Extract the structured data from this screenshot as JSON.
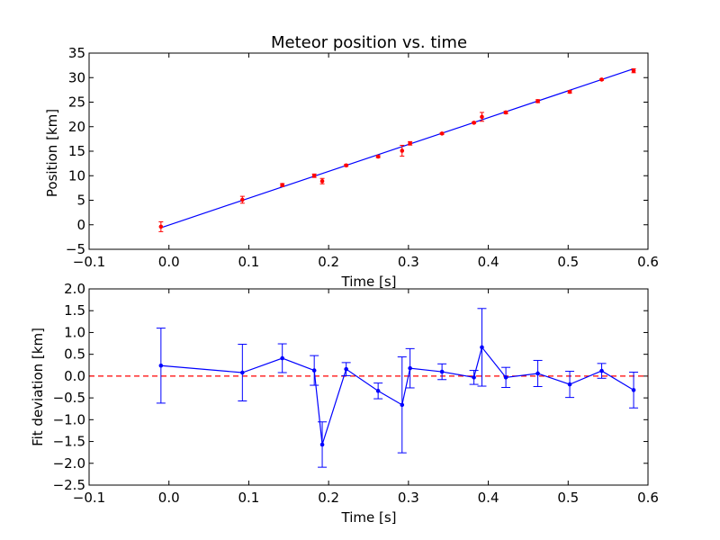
{
  "chart_data": [
    {
      "type": "scatter",
      "title": "Meteor position vs. time",
      "xlabel": "Time [s]",
      "ylabel": "Position [km]",
      "xlim": [
        -0.1,
        0.6
      ],
      "ylim": [
        -5,
        35
      ],
      "xticks": [
        "−0.1",
        "0.0",
        "0.1",
        "0.2",
        "0.3",
        "0.4",
        "0.5",
        "0.6"
      ],
      "yticks": [
        "−5",
        "0",
        "5",
        "10",
        "15",
        "20",
        "25",
        "30",
        "35"
      ],
      "grid": false,
      "series": [
        {
          "kind": "errorbar-points",
          "color": "#ff0000",
          "points": [
            {
              "x": -0.01,
              "y": -0.4,
              "err": 1.0
            },
            {
              "x": 0.092,
              "y": 5.1,
              "err": 0.7
            },
            {
              "x": 0.142,
              "y": 8.1,
              "err": 0.3
            },
            {
              "x": 0.182,
              "y": 10.0,
              "err": 0.35
            },
            {
              "x": 0.192,
              "y": 8.9,
              "err": 0.55
            },
            {
              "x": 0.222,
              "y": 12.1,
              "err": 0.2
            },
            {
              "x": 0.262,
              "y": 13.9,
              "err": 0.2
            },
            {
              "x": 0.292,
              "y": 15.1,
              "err": 1.1
            },
            {
              "x": 0.302,
              "y": 16.6,
              "err": 0.35
            },
            {
              "x": 0.342,
              "y": 18.6,
              "err": 0.15
            },
            {
              "x": 0.382,
              "y": 20.8,
              "err": 0.15
            },
            {
              "x": 0.392,
              "y": 22.0,
              "err": 0.9
            },
            {
              "x": 0.422,
              "y": 22.9,
              "err": 0.25
            },
            {
              "x": 0.462,
              "y": 25.2,
              "err": 0.3
            },
            {
              "x": 0.502,
              "y": 27.1,
              "err": 0.25
            },
            {
              "x": 0.542,
              "y": 29.6,
              "err": 0.15
            },
            {
              "x": 0.582,
              "y": 31.4,
              "err": 0.4
            }
          ]
        },
        {
          "kind": "fit-line",
          "color": "#0000ff",
          "x": [
            -0.01,
            0.582
          ],
          "y": [
            -0.6,
            31.8
          ]
        }
      ]
    },
    {
      "type": "line",
      "title": "",
      "xlabel": "Time [s]",
      "ylabel": "Fit deviation [km]",
      "xlim": [
        -0.1,
        0.6
      ],
      "ylim": [
        -2.5,
        2.0
      ],
      "xticks": [
        "−0.1",
        "0.0",
        "0.1",
        "0.2",
        "0.3",
        "0.4",
        "0.5",
        "0.6"
      ],
      "yticks": [
        "−2.5",
        "−2.0",
        "−1.5",
        "−1.0",
        "−0.5",
        "0.0",
        "0.5",
        "1.0",
        "1.5",
        "2.0"
      ],
      "grid": false,
      "series": [
        {
          "kind": "errorbar-line",
          "color": "#0000ff",
          "points": [
            {
              "x": -0.01,
              "y": 0.24,
              "err": 0.86
            },
            {
              "x": 0.092,
              "y": 0.08,
              "err": 0.65
            },
            {
              "x": 0.142,
              "y": 0.41,
              "err": 0.33
            },
            {
              "x": 0.182,
              "y": 0.13,
              "err": 0.34
            },
            {
              "x": 0.192,
              "y": -1.57,
              "err": 0.52
            },
            {
              "x": 0.222,
              "y": 0.16,
              "err": 0.15
            },
            {
              "x": 0.262,
              "y": -0.34,
              "err": 0.18
            },
            {
              "x": 0.292,
              "y": -0.66,
              "err": 1.1
            },
            {
              "x": 0.302,
              "y": 0.18,
              "err": 0.45
            },
            {
              "x": 0.342,
              "y": 0.1,
              "err": 0.18
            },
            {
              "x": 0.382,
              "y": -0.03,
              "err": 0.16
            },
            {
              "x": 0.392,
              "y": 0.66,
              "err": 0.89
            },
            {
              "x": 0.422,
              "y": -0.03,
              "err": 0.23
            },
            {
              "x": 0.462,
              "y": 0.06,
              "err": 0.3
            },
            {
              "x": 0.502,
              "y": -0.19,
              "err": 0.3
            },
            {
              "x": 0.542,
              "y": 0.12,
              "err": 0.17
            },
            {
              "x": 0.582,
              "y": -0.32,
              "err": 0.41
            }
          ]
        },
        {
          "kind": "reference-line",
          "color": "#ff0000",
          "dashed": true,
          "y": 0.0
        }
      ]
    }
  ]
}
